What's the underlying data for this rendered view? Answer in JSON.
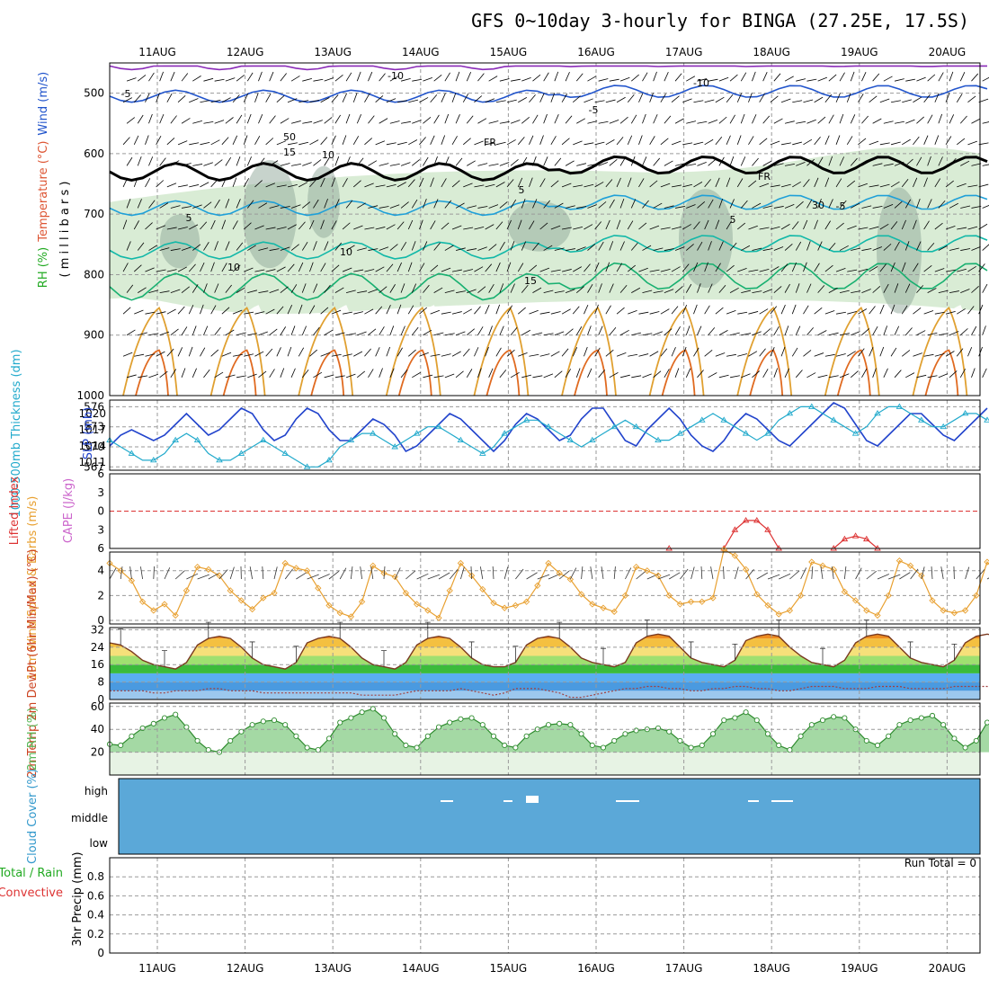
{
  "title": "GFS 0~10day 3-hourly for BINGA (27.25E, 17.5S)",
  "dates": [
    "11AUG",
    "12AUG",
    "13AUG",
    "14AUG",
    "15AUG",
    "16AUG",
    "17AUG",
    "18AUG",
    "19AUG",
    "20AUG"
  ],
  "colors": {
    "wind_barb": "#000000",
    "temp_isotherm": "#2255cc",
    "rh_fill": "#b9dcb3",
    "thickness": "#22aacc",
    "slp": "#2244cc",
    "lifted_index": "#dd3333",
    "wind_speed": "#e8a030",
    "rh_2m": "#58b858",
    "cloud": "#5ba8d8"
  },
  "chart_data": [
    {
      "type": "heatmap",
      "panel": "upper-air",
      "ylabel_parts": [
        "RH (%)",
        "Temperature (°C)",
        "Wind (m/s)"
      ],
      "ylabel_sub": "( m i l l i b a r s )",
      "yticks": [
        500,
        600,
        700,
        800,
        900,
        1000
      ],
      "ylim": [
        1000,
        450
      ],
      "isotherm_labels": [
        "-10",
        "-10",
        "-5",
        "-5",
        "FR",
        "FR",
        "5",
        "5",
        "-5",
        "5",
        "10",
        "10",
        "15",
        "15",
        "10",
        "50",
        "30"
      ]
    },
    {
      "type": "line",
      "panel": "thickness-slp",
      "ylabel_left": "1000-500mb Thickness (dm)",
      "ylabel_right": "SLP (mb)",
      "yticks_thickness": [
        567,
        570,
        573,
        576
      ],
      "yticks_slp": [
        1011,
        1014,
        1017,
        1020
      ],
      "series": [
        {
          "name": "SLP",
          "values": [
            1014,
            1016,
            1017,
            1016,
            1015,
            1016,
            1018,
            1020,
            1018,
            1016,
            1017,
            1019,
            1021,
            1020,
            1017,
            1015,
            1016,
            1019,
            1021,
            1020,
            1017,
            1015,
            1015,
            1017,
            1019,
            1018,
            1016,
            1013,
            1014,
            1016,
            1018,
            1020,
            1019,
            1017,
            1015,
            1013,
            1015,
            1018,
            1020,
            1019,
            1017,
            1015,
            1016,
            1019,
            1021,
            1021,
            1018,
            1015,
            1014,
            1017,
            1019,
            1021,
            1019,
            1016,
            1014,
            1013,
            1015,
            1018,
            1020,
            1019,
            1017,
            1015,
            1014,
            1016,
            1018,
            1020,
            1022,
            1021,
            1018,
            1015,
            1014,
            1016,
            1018,
            1020,
            1020,
            1018,
            1016,
            1015,
            1017,
            1019,
            1021
          ]
        },
        {
          "name": "1000-500mb Thickness",
          "values": [
            571,
            570,
            569,
            568,
            568,
            569,
            571,
            572,
            571,
            569,
            568,
            568,
            569,
            570,
            571,
            570,
            569,
            568,
            567,
            567,
            568,
            570,
            571,
            572,
            572,
            571,
            570,
            571,
            572,
            573,
            573,
            572,
            571,
            570,
            569,
            570,
            572,
            573,
            574,
            574,
            573,
            572,
            571,
            570,
            571,
            572,
            573,
            574,
            573,
            572,
            571,
            571,
            572,
            573,
            574,
            575,
            574,
            573,
            572,
            571,
            572,
            574,
            575,
            576,
            576,
            575,
            574,
            573,
            572,
            573,
            575,
            576,
            576,
            575,
            574,
            573,
            573,
            574,
            575,
            575,
            574
          ]
        }
      ]
    },
    {
      "type": "line",
      "panel": "cape-li",
      "ylabel_left": "Lifted Index",
      "ylabel_right": "CAPE (J/kg)",
      "yticks": [
        -6,
        -3,
        0,
        3,
        6
      ],
      "ylim": [
        6,
        -6
      ],
      "series": [
        {
          "name": "Lifted Index",
          "x_index": [
            51,
            52,
            53,
            54,
            55,
            56,
            57,
            58,
            59,
            60,
            61,
            62,
            63,
            64,
            65,
            66,
            67,
            68,
            69,
            70
          ],
          "values": [
            6,
            null,
            null,
            null,
            null,
            6,
            3,
            1.5,
            1.5,
            3,
            6,
            null,
            null,
            null,
            null,
            6,
            4.5,
            4,
            4.5,
            6
          ]
        }
      ]
    },
    {
      "type": "line",
      "panel": "wind10m",
      "ylabel": "10m Wind Speed & Barbs (m/s)",
      "yticks": [
        0,
        2,
        4
      ],
      "ylim": [
        0,
        5.5
      ],
      "series": [
        {
          "name": "10m Wind Speed",
          "values": [
            4.6,
            4.0,
            3.2,
            1.5,
            0.8,
            1.3,
            0.4,
            2.4,
            4.3,
            4.1,
            3.6,
            2.4,
            1.6,
            0.9,
            1.8,
            2.2,
            4.6,
            4.2,
            4.0,
            2.6,
            1.2,
            0.6,
            0.3,
            1.5,
            4.4,
            3.8,
            3.5,
            2.2,
            1.3,
            0.8,
            0.2,
            2.4,
            4.6,
            3.6,
            2.5,
            1.4,
            1.0,
            1.2,
            1.5,
            2.8,
            4.6,
            3.8,
            3.3,
            2.1,
            1.3,
            1.0,
            0.7,
            2.0,
            4.3,
            4.0,
            3.6,
            2.0,
            1.3,
            1.5,
            1.5,
            1.8,
            5.7,
            5.2,
            4.1,
            2.1,
            1.2,
            0.5,
            0.8,
            2.0,
            4.7,
            4.4,
            4.1,
            2.3,
            1.6,
            0.8,
            0.4,
            2.0,
            4.8,
            4.4,
            3.6,
            1.6,
            0.8,
            0.6,
            0.8,
            2.0,
            4.7,
            3.7,
            3.1,
            1.8,
            0.8,
            0.5,
            0.5,
            2.1,
            4.5,
            3.3,
            2.8,
            1.9,
            0.9,
            0.6,
            0.3,
            3.8
          ]
        }
      ]
    },
    {
      "type": "area",
      "panel": "temp2m",
      "ylabel": "2m Temp 2m DewPt (6hr Min/Max) (°C)",
      "yticks": [
        0,
        8,
        16,
        24,
        32
      ],
      "ylim": [
        0,
        33
      ],
      "series": [
        {
          "name": "2m Temp",
          "values": [
            26,
            25,
            22,
            18,
            16,
            15,
            14,
            17,
            25,
            28,
            29,
            28,
            24,
            19,
            16,
            15,
            14,
            17,
            26,
            28,
            29,
            28,
            24,
            19,
            16,
            15,
            14,
            17,
            25,
            28,
            29,
            28,
            24,
            19,
            16,
            15,
            15,
            17,
            25,
            28,
            29,
            28,
            24,
            19,
            17,
            16,
            15,
            17,
            26,
            29,
            30,
            29,
            24,
            19,
            17,
            16,
            15,
            18,
            27,
            29,
            30,
            29,
            24,
            20,
            17,
            16,
            15,
            18,
            26,
            29,
            30,
            29,
            24,
            19,
            17,
            16,
            15,
            18,
            26,
            29,
            30,
            29,
            24,
            19,
            17,
            16,
            14,
            20
          ]
        },
        {
          "name": "2m DewPt",
          "values": [
            4,
            4,
            4,
            4,
            3,
            3,
            4,
            4,
            4,
            5,
            5,
            4,
            4,
            4,
            3,
            3,
            3,
            3,
            3,
            3,
            3,
            3,
            3,
            2,
            2,
            2,
            2,
            3,
            4,
            4,
            4,
            4,
            5,
            4,
            3,
            2,
            3,
            5,
            5,
            5,
            4,
            3,
            1,
            1,
            2,
            3,
            4,
            5,
            5,
            6,
            6,
            5,
            5,
            4,
            4,
            5,
            5,
            6,
            6,
            5,
            5,
            4,
            4,
            5,
            6,
            6,
            6,
            5,
            5,
            5,
            6,
            6,
            6,
            5,
            5,
            5,
            5,
            6,
            6,
            6,
            6,
            5,
            5,
            5
          ]
        }
      ]
    },
    {
      "type": "area",
      "panel": "rh2m",
      "ylabel": "2m RH (%)",
      "yticks": [
        20,
        40,
        60
      ],
      "ylim": [
        0,
        63
      ],
      "series": [
        {
          "name": "2m RH",
          "values": [
            27,
            26,
            34,
            41,
            45,
            50,
            53,
            42,
            30,
            22,
            20,
            30,
            38,
            44,
            47,
            48,
            44,
            34,
            24,
            22,
            32,
            46,
            50,
            55,
            58,
            50,
            36,
            26,
            24,
            34,
            42,
            46,
            49,
            50,
            44,
            34,
            26,
            24,
            34,
            40,
            44,
            45,
            44,
            36,
            26,
            24,
            30,
            36,
            39,
            40,
            41,
            38,
            30,
            24,
            26,
            36,
            48,
            50,
            55,
            48,
            36,
            26,
            22,
            34,
            44,
            48,
            51,
            50,
            40,
            30,
            26,
            34,
            44,
            48,
            50,
            52,
            44,
            32,
            24,
            30,
            46,
            52,
            54,
            52,
            50
          ]
        }
      ]
    },
    {
      "type": "heatmap",
      "panel": "cloud",
      "ylabel": "Cloud Cover (%)",
      "levels": [
        "high",
        "middle",
        "low"
      ]
    },
    {
      "type": "bar",
      "panel": "precip",
      "ylabel_left": "Total / Rain",
      "ylabel_left2": "Convective",
      "ylabel_right": "3hr Precip (mm)",
      "yticks": [
        0,
        0.2,
        0.4,
        0.6,
        0.8
      ],
      "ylim": [
        0,
        1.0
      ],
      "run_total": "Run Total = 0",
      "values": []
    }
  ]
}
